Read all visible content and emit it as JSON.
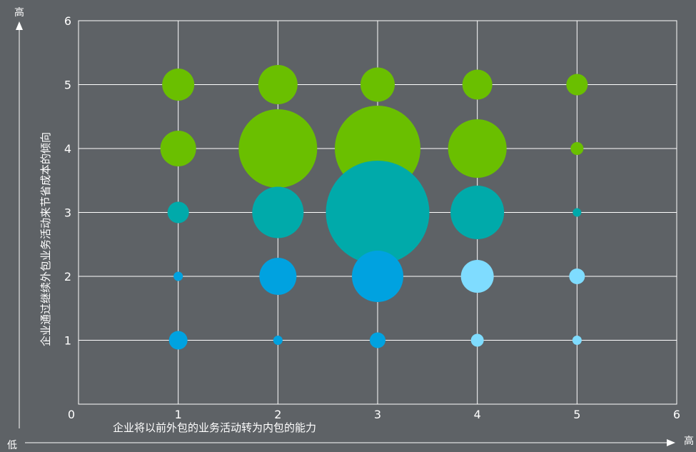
{
  "chart_data": {
    "type": "bubble",
    "xlabel": "企业将以前外包的业务活动转为内包的能力",
    "ylabel": "企业通过继续外包业务活动来节省成本的倾向",
    "xlim": [
      0,
      6
    ],
    "ylim": [
      0,
      6
    ],
    "x_ticks": [
      0,
      1,
      2,
      3,
      4,
      5,
      6
    ],
    "y_ticks": [
      1,
      2,
      3,
      4,
      5,
      6
    ],
    "grid": true,
    "outer_axis": {
      "x_low": "低",
      "x_high": "高",
      "y_high": "高"
    },
    "colors": {
      "green": "#6abf00",
      "teal": "#00aaaa",
      "blue": "#00a2e0",
      "lightblue": "#7fdcff"
    },
    "points": [
      {
        "x": 1,
        "y": 5,
        "size": 45,
        "color": "green"
      },
      {
        "x": 2,
        "y": 5,
        "size": 55,
        "color": "green"
      },
      {
        "x": 3,
        "y": 5,
        "size": 48,
        "color": "green"
      },
      {
        "x": 4,
        "y": 5,
        "size": 42,
        "color": "green"
      },
      {
        "x": 5,
        "y": 5,
        "size": 30,
        "color": "green"
      },
      {
        "x": 1,
        "y": 4,
        "size": 50,
        "color": "green"
      },
      {
        "x": 2,
        "y": 4,
        "size": 110,
        "color": "green"
      },
      {
        "x": 3,
        "y": 4,
        "size": 120,
        "color": "green"
      },
      {
        "x": 4,
        "y": 4,
        "size": 82,
        "color": "green"
      },
      {
        "x": 5,
        "y": 4,
        "size": 18,
        "color": "green"
      },
      {
        "x": 1,
        "y": 3,
        "size": 30,
        "color": "teal"
      },
      {
        "x": 2,
        "y": 3,
        "size": 72,
        "color": "teal"
      },
      {
        "x": 3,
        "y": 3,
        "size": 145,
        "color": "teal"
      },
      {
        "x": 4,
        "y": 3,
        "size": 75,
        "color": "teal"
      },
      {
        "x": 5,
        "y": 3,
        "size": 12,
        "color": "teal"
      },
      {
        "x": 1,
        "y": 2,
        "size": 13,
        "color": "blue"
      },
      {
        "x": 2,
        "y": 2,
        "size": 52,
        "color": "blue"
      },
      {
        "x": 3,
        "y": 2,
        "size": 72,
        "color": "blue"
      },
      {
        "x": 4,
        "y": 2,
        "size": 46,
        "color": "lightblue"
      },
      {
        "x": 5,
        "y": 2,
        "size": 22,
        "color": "lightblue"
      },
      {
        "x": 1,
        "y": 1,
        "size": 26,
        "color": "blue"
      },
      {
        "x": 2,
        "y": 1,
        "size": 13,
        "color": "blue"
      },
      {
        "x": 3,
        "y": 1,
        "size": 22,
        "color": "blue"
      },
      {
        "x": 4,
        "y": 1,
        "size": 18,
        "color": "lightblue"
      },
      {
        "x": 5,
        "y": 1,
        "size": 13,
        "color": "lightblue"
      }
    ]
  }
}
